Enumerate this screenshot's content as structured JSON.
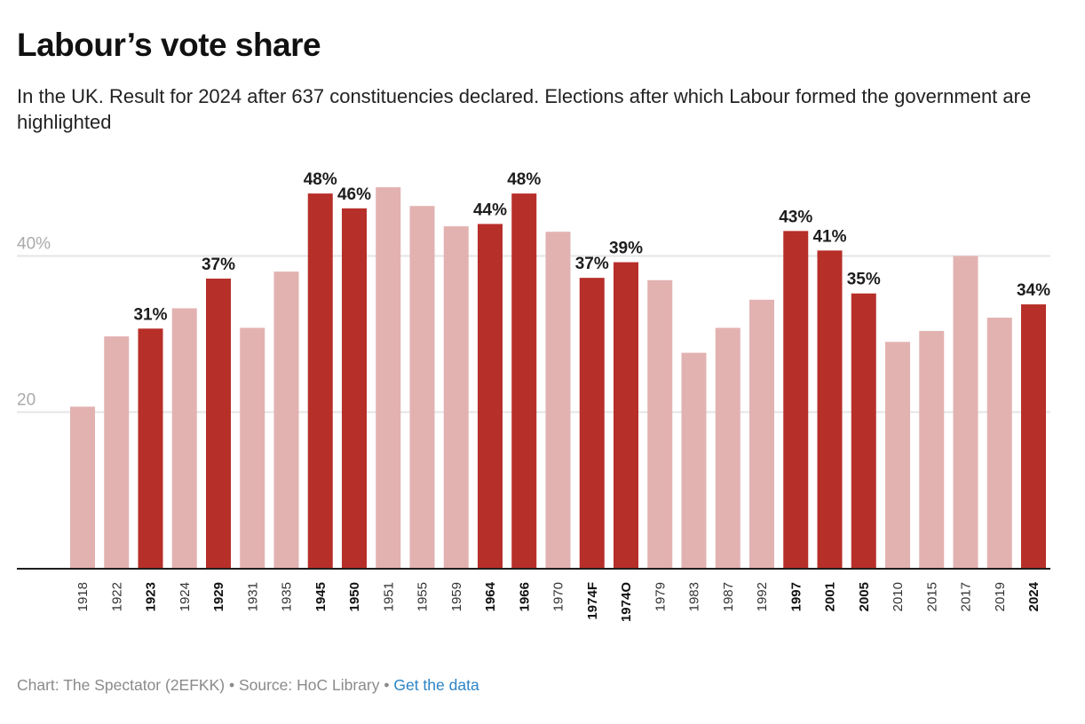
{
  "header": {
    "title": "Labour’s vote share",
    "subtitle": "In the UK. Result for 2024 after 637 constituencies declared. Elections after which Labour formed the government are highlighted"
  },
  "footer": {
    "chart_credit": "Chart: The Spectator (2EFKK)",
    "separator": " • ",
    "source": "Source: HoC Library",
    "get_data_label": "Get the data"
  },
  "colors": {
    "highlight": "#b72f29",
    "default": "#e2b2b1",
    "label_text": "#1d1d1d",
    "axis_text": "#aaaaaa",
    "gridline": "#e5e5e5",
    "link": "#2c84c6"
  },
  "chart_data": {
    "type": "bar",
    "title": "Labour’s vote share",
    "xlabel": "",
    "ylabel": "",
    "ylim": [
      0,
      50
    ],
    "grid": true,
    "yticks": [
      {
        "value": 20,
        "label": "20"
      },
      {
        "value": 40,
        "label": "40%"
      }
    ],
    "categories": [
      "1918",
      "1922",
      "1923",
      "1924",
      "1929",
      "1931",
      "1935",
      "1945",
      "1950",
      "1951",
      "1955",
      "1959",
      "1964",
      "1966",
      "1970",
      "1974F",
      "1974O",
      "1979",
      "1983",
      "1987",
      "1992",
      "1997",
      "2001",
      "2005",
      "2010",
      "2015",
      "2017",
      "2019",
      "2024"
    ],
    "values": [
      20.7,
      29.7,
      30.7,
      33.3,
      37.1,
      30.8,
      38.0,
      48.0,
      46.1,
      48.8,
      46.4,
      43.8,
      44.1,
      48.0,
      43.1,
      37.2,
      39.2,
      36.9,
      27.6,
      30.8,
      34.4,
      43.2,
      40.7,
      35.2,
      29.0,
      30.4,
      40.0,
      32.1,
      33.8
    ],
    "highlighted": [
      false,
      false,
      true,
      false,
      true,
      false,
      false,
      true,
      true,
      false,
      false,
      false,
      true,
      true,
      false,
      true,
      true,
      false,
      false,
      false,
      false,
      true,
      true,
      true,
      false,
      false,
      false,
      false,
      true
    ],
    "data_labels": [
      "",
      "",
      "31%",
      "",
      "37%",
      "",
      "",
      "48%",
      "46%",
      "",
      "",
      "",
      "44%",
      "48%",
      "",
      "37%",
      "39%",
      "",
      "",
      "",
      "",
      "43%",
      "41%",
      "35%",
      "",
      "",
      "",
      "",
      "34%"
    ]
  }
}
